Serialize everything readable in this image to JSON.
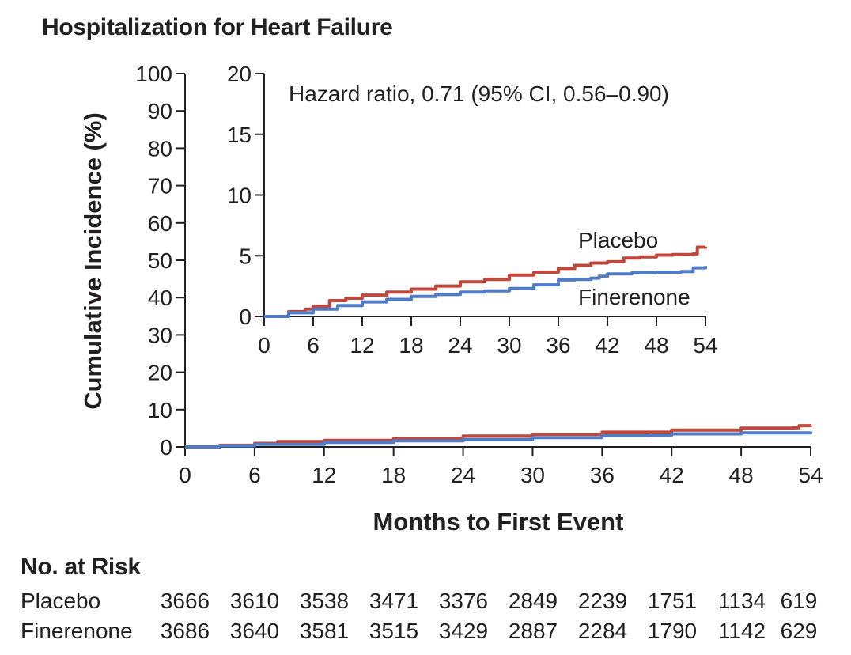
{
  "title": "Hospitalization for Heart Failure",
  "colors": {
    "placebo": "#c0473a",
    "finerenone": "#4f7cc4",
    "axis": "#231f20"
  },
  "chart_data": [
    {
      "type": "line",
      "panel": "main",
      "xlabel": "Months to First Event",
      "ylabel": "Cumulative Incidence (%)",
      "xlim": [
        0,
        54
      ],
      "ylim": [
        0,
        100
      ],
      "xticks": [
        0,
        6,
        12,
        18,
        24,
        30,
        36,
        42,
        48,
        54
      ],
      "yticks": [
        0,
        10,
        20,
        30,
        40,
        50,
        60,
        70,
        80,
        90,
        100
      ],
      "grid": false,
      "series": [
        {
          "name": "Placebo",
          "x": [
            0,
            3,
            6,
            8,
            12,
            18,
            24,
            30,
            36,
            42,
            48,
            52.5,
            53,
            54
          ],
          "y": [
            0,
            0.45,
            0.95,
            1.45,
            1.75,
            2.3,
            2.9,
            3.4,
            3.95,
            4.5,
            5.05,
            5.1,
            5.7,
            5.75
          ]
        },
        {
          "name": "Finerenone",
          "x": [
            0,
            3,
            6,
            12,
            18,
            24,
            30,
            36,
            40,
            42,
            48,
            54
          ],
          "y": [
            0,
            0.3,
            0.7,
            1.2,
            1.65,
            2.0,
            2.5,
            3.0,
            3.15,
            3.5,
            3.75,
            4.1
          ]
        }
      ]
    },
    {
      "type": "line",
      "panel": "inset",
      "annotation": "Hazard ratio, 0.71 (95% CI, 0.56–0.90)",
      "xlim": [
        0,
        54
      ],
      "ylim": [
        0,
        20
      ],
      "xticks": [
        0,
        6,
        12,
        18,
        24,
        30,
        36,
        42,
        48,
        54
      ],
      "yticks": [
        0,
        5,
        10,
        15,
        20
      ],
      "grid": false,
      "series": [
        {
          "name": "Placebo",
          "label": "Placebo",
          "x": [
            0,
            3,
            5,
            6,
            8,
            10,
            12,
            15,
            18,
            21,
            24,
            27,
            30,
            33,
            36,
            38,
            40,
            42,
            44,
            46,
            48,
            50,
            52.5,
            53,
            54
          ],
          "y": [
            0,
            0.4,
            0.6,
            0.85,
            1.3,
            1.5,
            1.75,
            2.0,
            2.25,
            2.5,
            2.85,
            3.05,
            3.4,
            3.65,
            3.95,
            4.2,
            4.4,
            4.5,
            4.8,
            4.9,
            5.05,
            5.1,
            5.15,
            5.7,
            5.75
          ]
        },
        {
          "name": "Finerenone",
          "label": "Finerenone",
          "x": [
            0,
            3,
            6,
            9,
            12,
            15,
            18,
            21,
            24,
            27,
            30,
            33,
            36,
            38,
            40,
            41,
            42,
            45,
            48,
            51,
            52.5,
            54
          ],
          "y": [
            0,
            0.3,
            0.6,
            0.9,
            1.2,
            1.4,
            1.65,
            1.8,
            2.0,
            2.1,
            2.3,
            2.6,
            3.0,
            3.05,
            3.15,
            3.3,
            3.5,
            3.6,
            3.65,
            3.7,
            4.0,
            4.15
          ]
        }
      ]
    }
  ],
  "risk_table": {
    "title": "No. at Risk",
    "rows": [
      {
        "label": "Placebo",
        "values": [
          "3666",
          "3610",
          "3538",
          "3471",
          "3376",
          "2849",
          "2239",
          "1751",
          "1134",
          "619"
        ]
      },
      {
        "label": "Finerenone",
        "values": [
          "3686",
          "3640",
          "3581",
          "3515",
          "3429",
          "2887",
          "2284",
          "1790",
          "1142",
          "629"
        ]
      }
    ]
  }
}
